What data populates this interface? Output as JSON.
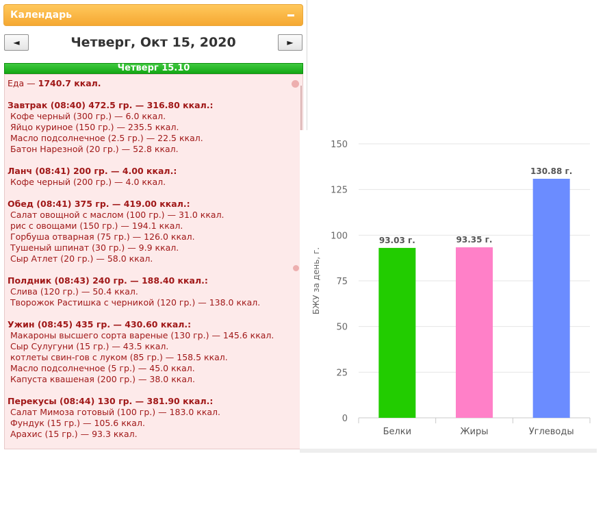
{
  "calendar": {
    "title": "Календарь",
    "prev_label": "◄",
    "next_label": "►",
    "date": "Четверг, Окт 15, 2020",
    "day_label": "Четверг 15.10"
  },
  "food": {
    "total_prefix": "Еда — ",
    "total_value": "1740.7 ккал.",
    "meals": [
      {
        "header": "Завтрак (08:40) 472.5 гр. — 316.80 ккал.:",
        "items": [
          "Кофе черный (300 гр.) — 6.0 ккал.",
          "Яйцо куриное (150 гр.) — 235.5 ккал.",
          "Масло подсолнечное (2.5 гр.) — 22.5 ккал.",
          "Батон Нарезной (20 гр.) — 52.8 ккал."
        ]
      },
      {
        "header": "Ланч (08:41) 200 гр. — 4.00 ккал.:",
        "items": [
          "Кофе черный (200 гр.) — 4.0 ккал."
        ]
      },
      {
        "header": "Обед (08:41) 375 гр. — 419.00 ккал.:",
        "items": [
          "Салат овощной с маслом (100 гр.) — 31.0 ккал.",
          "рис с овощами (150 гр.) — 194.1 ккал.",
          "Горбуша отварная (75 гр.) — 126.0 ккал.",
          "Тушеный шпинат (30 гр.) — 9.9 ккал.",
          "Сыр Атлет (20 гр.) — 58.0 ккал."
        ]
      },
      {
        "header": "Полдник (08:43) 240 гр. — 188.40 ккал.:",
        "items": [
          "Слива (120 гр.) — 50.4 ккал.",
          "Творожок Растишка с черникой (120 гр.) — 138.0 ккал."
        ]
      },
      {
        "header": "Ужин (08:45) 435 гр. — 430.60 ккал.:",
        "items": [
          "Макароны высшего сорта вареные (130 гр.) — 145.6 ккал.",
          "Сыр Сулугуни (15 гр.) — 43.5 ккал.",
          "котлеты свин-гов с луком (85 гр.) — 158.5 ккал.",
          "Масло подсолнечное (5 гр.) — 45.0 ккал.",
          "Капуста квашеная (200 гр.) — 38.0 ккал."
        ]
      },
      {
        "header": "Перекусы (08:44) 130 гр. — 381.90 ккал.:",
        "items": [
          "Салат Мимоза готовый (100 гр.) — 183.0 ккал.",
          "Фундук (15 гр.) — 105.6 ккал.",
          "Арахис (15 гр.) — 93.3 ккал."
        ]
      }
    ]
  },
  "icons": {
    "collapse": "minus-icon",
    "item_marker": "apple-icon"
  },
  "chart_data": {
    "type": "bar",
    "categories": [
      "Белки",
      "Жиры",
      "Углеводы"
    ],
    "values": [
      93.03,
      93.35,
      130.88
    ],
    "data_labels": [
      "93.03 г.",
      "93.35 г.",
      "130.88 г."
    ],
    "colors": [
      "#22cc00",
      "#ff80c8",
      "#6b8cff"
    ],
    "ylabel": "БЖУ за день, г.",
    "ylim": [
      0,
      150
    ],
    "yticks": [
      0,
      25,
      50,
      75,
      100,
      125,
      150
    ],
    "grid": true,
    "legend": "none"
  }
}
